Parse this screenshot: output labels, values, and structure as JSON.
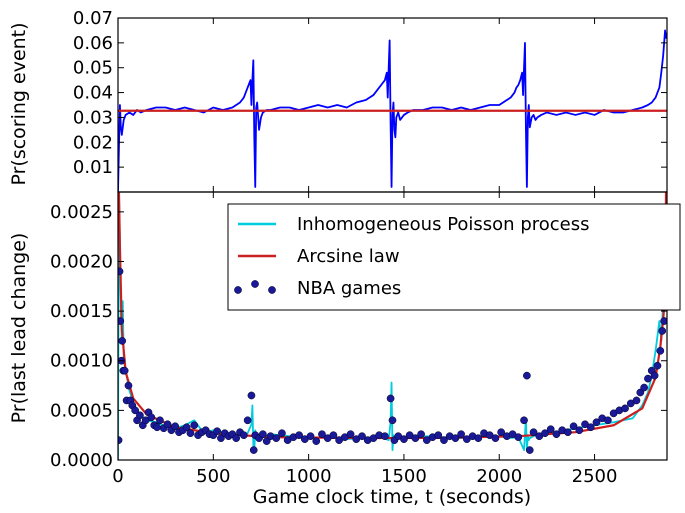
{
  "chart_data": [
    {
      "type": "line",
      "ylabel": "Pr(scoring event)",
      "xlabel": "",
      "xlim": [
        0,
        2880
      ],
      "ylim": [
        0.0,
        0.07
      ],
      "yticks": [
        "0.01",
        "0.02",
        "0.03",
        "0.04",
        "0.05",
        "0.06",
        "0.07"
      ],
      "grid": false,
      "series": [
        {
          "color": "#0000ff",
          "x": [
            0,
            5,
            10,
            15,
            20,
            30,
            40,
            60,
            80,
            100,
            120,
            150,
            200,
            250,
            300,
            350,
            400,
            450,
            500,
            550,
            600,
            620,
            640,
            660,
            670,
            680,
            690,
            695,
            700,
            705,
            710,
            715,
            720,
            725,
            730,
            740,
            750,
            760,
            780,
            800,
            850,
            900,
            950,
            1000,
            1050,
            1100,
            1150,
            1200,
            1250,
            1300,
            1320,
            1340,
            1360,
            1380,
            1390,
            1400,
            1410,
            1415,
            1420,
            1425,
            1430,
            1435,
            1440,
            1445,
            1450,
            1455,
            1460,
            1470,
            1480,
            1490,
            1500,
            1520,
            1550,
            1600,
            1650,
            1700,
            1750,
            1800,
            1850,
            1900,
            1950,
            2000,
            2020,
            2040,
            2060,
            2080,
            2090,
            2100,
            2110,
            2120,
            2125,
            2130,
            2135,
            2140,
            2145,
            2150,
            2155,
            2160,
            2165,
            2170,
            2180,
            2190,
            2200,
            2220,
            2250,
            2300,
            2350,
            2400,
            2450,
            2500,
            2550,
            2600,
            2650,
            2700,
            2750,
            2780,
            2800,
            2820,
            2840,
            2850,
            2860,
            2865,
            2870,
            2875,
            2880
          ],
          "y": [
            0.0,
            0.018,
            0.035,
            0.026,
            0.023,
            0.029,
            0.031,
            0.032,
            0.031,
            0.033,
            0.032,
            0.033,
            0.034,
            0.034,
            0.033,
            0.034,
            0.033,
            0.032,
            0.034,
            0.033,
            0.034,
            0.035,
            0.036,
            0.038,
            0.04,
            0.042,
            0.044,
            0.045,
            0.035,
            0.045,
            0.053,
            0.022,
            0.002,
            0.034,
            0.036,
            0.025,
            0.03,
            0.032,
            0.033,
            0.033,
            0.034,
            0.034,
            0.033,
            0.034,
            0.035,
            0.034,
            0.035,
            0.034,
            0.036,
            0.037,
            0.038,
            0.039,
            0.041,
            0.043,
            0.044,
            0.045,
            0.048,
            0.038,
            0.05,
            0.061,
            0.028,
            0.002,
            0.031,
            0.036,
            0.025,
            0.022,
            0.03,
            0.032,
            0.029,
            0.03,
            0.031,
            0.032,
            0.033,
            0.033,
            0.034,
            0.034,
            0.033,
            0.034,
            0.033,
            0.034,
            0.035,
            0.035,
            0.036,
            0.037,
            0.038,
            0.04,
            0.042,
            0.043,
            0.045,
            0.048,
            0.039,
            0.05,
            0.06,
            0.025,
            0.002,
            0.03,
            0.035,
            0.026,
            0.028,
            0.03,
            0.031,
            0.029,
            0.03,
            0.031,
            0.032,
            0.031,
            0.032,
            0.031,
            0.032,
            0.031,
            0.033,
            0.032,
            0.032,
            0.033,
            0.034,
            0.035,
            0.036,
            0.038,
            0.042,
            0.048,
            0.055,
            0.06,
            0.065,
            0.062,
            0.064
          ]
        },
        {
          "color": "#cc2020",
          "x": [
            0,
            2880
          ],
          "y": [
            0.0327,
            0.0327
          ]
        }
      ]
    },
    {
      "type": "line",
      "ylabel": "Pr(last lead change)",
      "xlabel": "Game clock time, t (seconds)",
      "xlim": [
        0,
        2880
      ],
      "ylim": [
        0.0,
        0.0027
      ],
      "xticks": [
        "0",
        "500",
        "1000",
        "1500",
        "2000",
        "2500"
      ],
      "yticks": [
        "0.0000",
        "0.0005",
        "0.0010",
        "0.0015",
        "0.0020",
        "0.0025"
      ],
      "grid": false,
      "legend_position": "upper-right",
      "series": [
        {
          "name": "Inhomogeneous Poisson process",
          "color": "#00ccdd",
          "x": [
            0,
            5,
            10,
            15,
            20,
            25,
            30,
            40,
            50,
            60,
            80,
            100,
            120,
            150,
            200,
            250,
            300,
            350,
            400,
            450,
            500,
            550,
            600,
            650,
            680,
            700,
            705,
            710,
            715,
            720,
            730,
            740,
            760,
            800,
            900,
            1000,
            1100,
            1200,
            1300,
            1380,
            1420,
            1430,
            1435,
            1440,
            1445,
            1450,
            1460,
            1500,
            1600,
            1700,
            1800,
            1900,
            2000,
            2050,
            2100,
            2130,
            2140,
            2145,
            2150,
            2155,
            2160,
            2200,
            2300,
            2400,
            2500,
            2600,
            2650,
            2700,
            2750,
            2780,
            2800,
            2820,
            2840,
            2850,
            2860,
            2870,
            2875,
            2880
          ],
          "y": [
            0.0,
            0.0027,
            0.0022,
            0.0015,
            0.0012,
            0.0016,
            0.001,
            0.0009,
            0.0008,
            0.0007,
            0.00058,
            0.0005,
            0.00045,
            0.0004,
            0.00038,
            0.00034,
            0.00032,
            0.00035,
            0.0004,
            0.00027,
            0.0003,
            0.00028,
            0.00026,
            0.00025,
            0.00027,
            0.00036,
            0.00055,
            0.00015,
            0.0001,
            0.0003,
            0.0002,
            0.00024,
            0.00023,
            0.00026,
            0.00024,
            0.00022,
            0.00023,
            0.00021,
            0.00022,
            0.00023,
            0.0002,
            0.00038,
            0.00078,
            0.0001,
            0.00025,
            0.0002,
            0.00022,
            0.00023,
            0.00024,
            0.00023,
            0.00022,
            0.00023,
            0.00024,
            0.00022,
            0.00023,
            0.0001,
            0.00042,
            0.0001,
            0.00025,
            0.0002,
            0.00022,
            0.00026,
            0.00028,
            0.00032,
            0.00035,
            0.00038,
            0.0004,
            0.00042,
            0.00055,
            0.00068,
            0.00085,
            0.0011,
            0.0014,
            0.0012,
            0.0016,
            0.0022,
            0.0026,
            0.0027
          ]
        },
        {
          "name": "Arcsine law",
          "color": "#cc2020",
          "formula": "arcsine density",
          "x": [
            5,
            10,
            20,
            40,
            80,
            150,
            300,
            500,
            800,
            1200,
            1440,
            1700,
            2100,
            2400,
            2600,
            2750,
            2820,
            2845,
            2860,
            2870,
            2875
          ],
          "y": [
            0.0027,
            0.00215,
            0.00132,
            0.00089,
            0.00062,
            0.00046,
            0.00033,
            0.00027,
            0.00023,
            0.000223,
            0.000221,
            0.000223,
            0.00024,
            0.00028,
            0.00035,
            0.00052,
            0.00083,
            0.00114,
            0.00142,
            0.00165,
            0.00272
          ]
        },
        {
          "name": "NBA games",
          "color": "#1a1a99",
          "marker": "circle",
          "x": [
            3,
            8,
            12,
            18,
            22,
            28,
            35,
            45,
            55,
            65,
            75,
            90,
            100,
            115,
            130,
            145,
            160,
            175,
            190,
            205,
            220,
            240,
            260,
            280,
            300,
            320,
            340,
            360,
            380,
            400,
            420,
            440,
            460,
            480,
            500,
            520,
            540,
            560,
            580,
            600,
            620,
            640,
            660,
            680,
            700,
            712,
            720,
            740,
            760,
            780,
            800,
            830,
            860,
            890,
            920,
            950,
            980,
            1010,
            1040,
            1070,
            1100,
            1130,
            1160,
            1190,
            1220,
            1250,
            1280,
            1310,
            1340,
            1370,
            1400,
            1430,
            1440,
            1450,
            1470,
            1500,
            1530,
            1560,
            1590,
            1620,
            1650,
            1680,
            1710,
            1740,
            1770,
            1800,
            1830,
            1860,
            1890,
            1920,
            1950,
            1980,
            2010,
            2040,
            2070,
            2100,
            2130,
            2145,
            2160,
            2180,
            2210,
            2240,
            2270,
            2300,
            2330,
            2360,
            2390,
            2420,
            2450,
            2480,
            2510,
            2540,
            2570,
            2600,
            2630,
            2660,
            2690,
            2720,
            2740,
            2760,
            2780,
            2800,
            2815,
            2830,
            2845,
            2855,
            2865,
            2872
          ],
          "y": [
            0.0002,
            0.0019,
            0.0014,
            0.001,
            0.0012,
            0.0009,
            0.0009,
            0.0006,
            0.00075,
            0.0006,
            0.00055,
            0.0005,
            0.0004,
            0.00045,
            0.00035,
            0.0004,
            0.00048,
            0.00043,
            0.00035,
            0.00033,
            0.0004,
            0.00032,
            0.00036,
            0.0003,
            0.00034,
            0.00028,
            0.0003,
            0.00033,
            0.00027,
            0.00035,
            0.00025,
            0.00028,
            0.0003,
            0.00026,
            0.00025,
            0.00029,
            0.00022,
            0.00027,
            0.00024,
            0.00026,
            0.00022,
            0.00028,
            0.00025,
            0.0004,
            0.00065,
            0.0001,
            0.00025,
            0.00022,
            0.00026,
            0.00019,
            0.00024,
            0.00022,
            0.00027,
            0.0002,
            0.00023,
            0.00025,
            0.00021,
            0.00024,
            0.00019,
            0.00026,
            0.00022,
            0.00025,
            0.0002,
            0.00023,
            0.00026,
            0.00021,
            0.00024,
            0.0002,
            0.00022,
            0.00025,
            0.00024,
            0.00062,
            0.0004,
            0.0002,
            0.00024,
            0.00021,
            0.00025,
            0.00022,
            0.00026,
            0.0002,
            0.00023,
            0.00025,
            0.0002,
            0.00024,
            0.00022,
            0.00026,
            0.00021,
            0.00024,
            0.00022,
            0.00027,
            0.00025,
            0.00022,
            0.00028,
            0.00024,
            0.00026,
            0.00023,
            0.0004,
            0.00085,
            0.0001,
            0.00028,
            0.00024,
            0.00027,
            0.00031,
            0.00026,
            0.0003,
            0.00028,
            0.00034,
            0.0003,
            0.00036,
            0.00033,
            0.00038,
            0.00042,
            0.0004,
            0.00047,
            0.0005,
            0.00052,
            0.00057,
            0.0006,
            0.00068,
            0.00073,
            0.00082,
            0.0009,
            0.00085,
            0.00095,
            0.0011,
            0.0013,
            0.0014,
            0.0016
          ]
        }
      ]
    }
  ]
}
